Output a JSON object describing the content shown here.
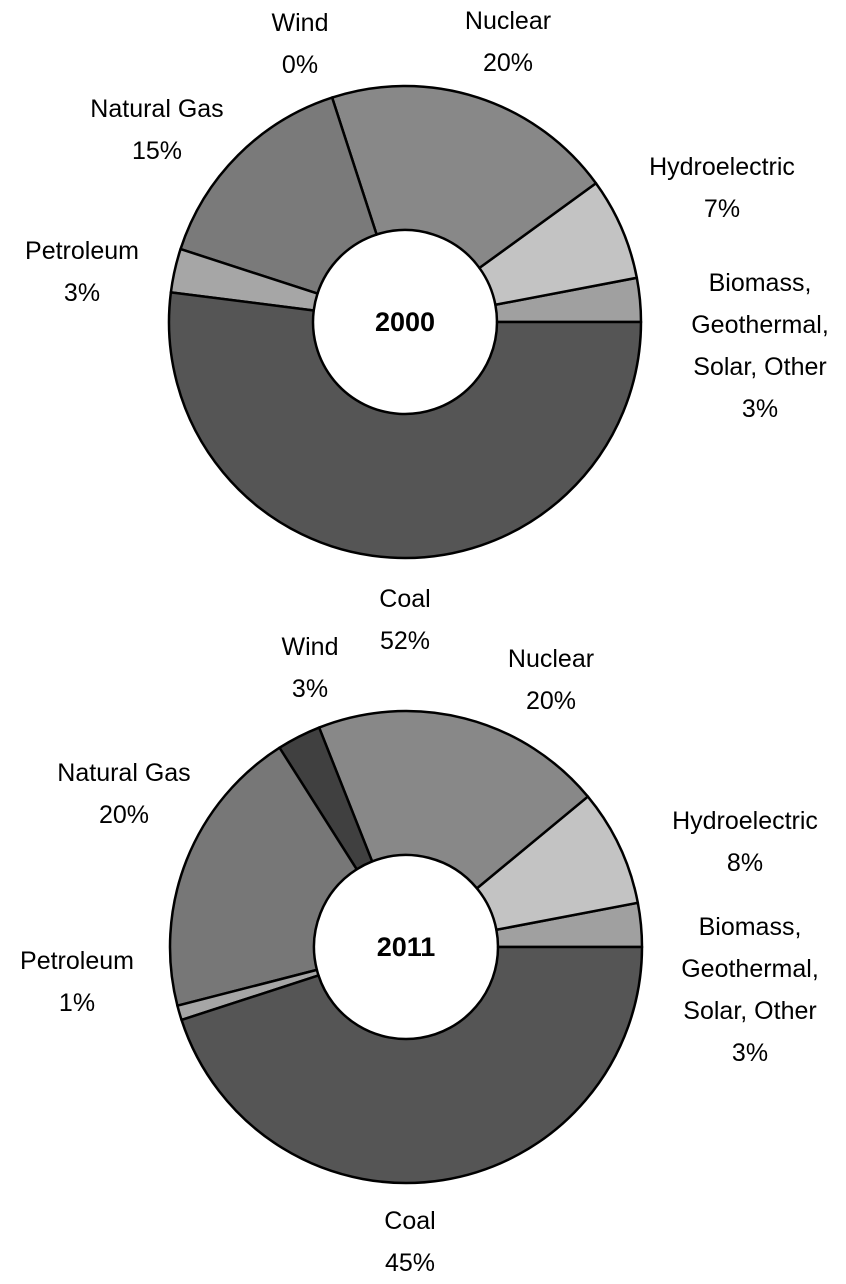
{
  "chart_data": [
    {
      "type": "donut",
      "title": "2000",
      "categories": [
        "Biomass, Geothermal, Solar, Other",
        "Hydroelectric",
        "Nuclear",
        "Wind",
        "Natural Gas",
        "Petroleum",
        "Coal"
      ],
      "values": [
        3,
        7,
        20,
        0,
        15,
        3,
        52
      ],
      "value_labels": [
        "3%",
        "7%",
        "20%",
        "0%",
        "15%",
        "3%",
        "52%"
      ],
      "colors": [
        "#a0a0a0",
        "#c3c3c3",
        "#888888",
        "#3a3a3a",
        "#7a7a7a",
        "#a6a6a6",
        "#555555"
      ]
    },
    {
      "type": "donut",
      "title": "2011",
      "categories": [
        "Biomass, Geothermal, Solar, Other",
        "Hydroelectric",
        "Nuclear",
        "Wind",
        "Natural Gas",
        "Petroleum",
        "Coal"
      ],
      "values": [
        3,
        8,
        20,
        3,
        20,
        1,
        45
      ],
      "value_labels": [
        "3%",
        "8%",
        "20%",
        "3%",
        "20%",
        "1%",
        "45%"
      ],
      "colors": [
        "#a0a0a0",
        "#c3c3c3",
        "#888888",
        "#404040",
        "#777777",
        "#a6a6a6",
        "#555555"
      ]
    }
  ]
}
